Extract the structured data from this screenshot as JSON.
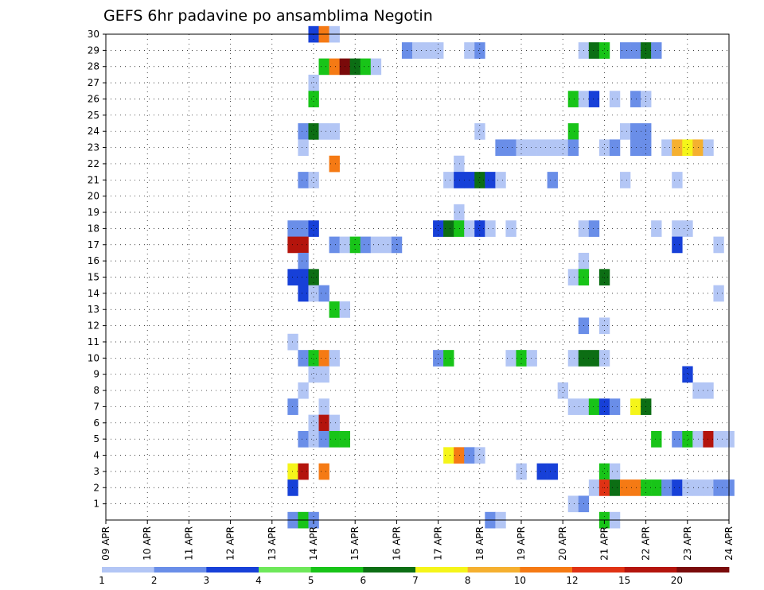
{
  "chart_data": {
    "type": "heatmap",
    "title": "GEFS 6hr padavine po ansamblima Negotin",
    "y_ticks": [
      "1",
      "2",
      "3",
      "4",
      "5",
      "6",
      "7",
      "8",
      "9",
      "10",
      "11",
      "12",
      "13",
      "14",
      "15",
      "16",
      "17",
      "18",
      "19",
      "20",
      "21",
      "22",
      "23",
      "24",
      "25",
      "26",
      "27",
      "28",
      "29",
      "30"
    ],
    "x_ticks": [
      "09 APR",
      "10 APR",
      "11 APR",
      "12 APR",
      "13 APR",
      "14 APR",
      "15 APR",
      "16 APR",
      "17 APR",
      "18 APR",
      "19 APR",
      "20 APR",
      "21 APR",
      "22 APR",
      "23 APR",
      "24 APR"
    ],
    "x_range_days": [
      0,
      15
    ],
    "y_range": [
      0,
      30
    ],
    "grid": "dotted",
    "colorbar": {
      "labels": [
        "1",
        "2",
        "3",
        "4",
        "5",
        "6",
        "7",
        "8",
        "10",
        "12",
        "15",
        "20"
      ],
      "colors": [
        "#b3c6f5",
        "#6a8ee8",
        "#1740d8",
        "#6ee85a",
        "#18c418",
        "#0c6e14",
        "#f5f51a",
        "#f5b030",
        "#f57a14",
        "#e03214",
        "#b4140c",
        "#7a0a0a"
      ]
    },
    "cells": [
      [
        5.0,
        30,
        3
      ],
      [
        5.25,
        30,
        10
      ],
      [
        5.5,
        30,
        1
      ],
      [
        7.25,
        29,
        2
      ],
      [
        7.5,
        29,
        1
      ],
      [
        7.75,
        29,
        1
      ],
      [
        8.0,
        29,
        1
      ],
      [
        8.75,
        29,
        1
      ],
      [
        9.0,
        29,
        2
      ],
      [
        11.5,
        29,
        1
      ],
      [
        11.75,
        29,
        6
      ],
      [
        12.0,
        29,
        5
      ],
      [
        12.5,
        29,
        2
      ],
      [
        12.75,
        29,
        2
      ],
      [
        13.0,
        29,
        6
      ],
      [
        13.25,
        29,
        2
      ],
      [
        5.25,
        28,
        5
      ],
      [
        5.5,
        28,
        10
      ],
      [
        5.75,
        28,
        20
      ],
      [
        6.0,
        28,
        6
      ],
      [
        6.25,
        28,
        5
      ],
      [
        6.5,
        28,
        1
      ],
      [
        5.0,
        27,
        1
      ],
      [
        5.0,
        26,
        5
      ],
      [
        11.25,
        26,
        5
      ],
      [
        11.5,
        26,
        1
      ],
      [
        11.75,
        26,
        3
      ],
      [
        12.25,
        26,
        1
      ],
      [
        12.75,
        26,
        2
      ],
      [
        13.0,
        26,
        1
      ],
      [
        4.75,
        24,
        2
      ],
      [
        5.0,
        24,
        6
      ],
      [
        5.25,
        24,
        1
      ],
      [
        5.5,
        24,
        1
      ],
      [
        9.0,
        24,
        1
      ],
      [
        11.25,
        24,
        5
      ],
      [
        12.5,
        24,
        1
      ],
      [
        12.75,
        24,
        2
      ],
      [
        13.0,
        24,
        2
      ],
      [
        4.75,
        23,
        1
      ],
      [
        9.5,
        23,
        2
      ],
      [
        9.75,
        23,
        2
      ],
      [
        10.0,
        23,
        1
      ],
      [
        10.25,
        23,
        1
      ],
      [
        10.5,
        23,
        1
      ],
      [
        10.75,
        23,
        1
      ],
      [
        11.0,
        23,
        1
      ],
      [
        11.25,
        23,
        2
      ],
      [
        12.0,
        23,
        1
      ],
      [
        12.25,
        23,
        2
      ],
      [
        12.75,
        23,
        2
      ],
      [
        13.0,
        23,
        2
      ],
      [
        13.5,
        23,
        1
      ],
      [
        13.75,
        23,
        8
      ],
      [
        14.0,
        23,
        7
      ],
      [
        14.25,
        23,
        8
      ],
      [
        14.5,
        23,
        1
      ],
      [
        5.5,
        22,
        10
      ],
      [
        8.5,
        22,
        1
      ],
      [
        4.75,
        21,
        2
      ],
      [
        5.0,
        21,
        1
      ],
      [
        8.25,
        21,
        1
      ],
      [
        8.5,
        21,
        3
      ],
      [
        8.75,
        21,
        3
      ],
      [
        9.0,
        21,
        6
      ],
      [
        9.25,
        21,
        3
      ],
      [
        9.5,
        21,
        1
      ],
      [
        10.75,
        21,
        2
      ],
      [
        12.5,
        21,
        1
      ],
      [
        13.75,
        21,
        1
      ],
      [
        8.5,
        19,
        1
      ],
      [
        4.5,
        18,
        2
      ],
      [
        4.75,
        18,
        2
      ],
      [
        5.0,
        18,
        3
      ],
      [
        8.0,
        18,
        3
      ],
      [
        8.25,
        18,
        6
      ],
      [
        8.5,
        18,
        5
      ],
      [
        8.75,
        18,
        1
      ],
      [
        9.0,
        18,
        3
      ],
      [
        9.25,
        18,
        1
      ],
      [
        9.75,
        18,
        1
      ],
      [
        11.5,
        18,
        1
      ],
      [
        11.75,
        18,
        2
      ],
      [
        13.25,
        18,
        1
      ],
      [
        13.75,
        18,
        1
      ],
      [
        14.0,
        18,
        1
      ],
      [
        4.5,
        17,
        15
      ],
      [
        4.75,
        17,
        15
      ],
      [
        5.5,
        17,
        2
      ],
      [
        5.75,
        17,
        1
      ],
      [
        6.0,
        17,
        5
      ],
      [
        6.25,
        17,
        2
      ],
      [
        6.5,
        17,
        1
      ],
      [
        6.75,
        17,
        1
      ],
      [
        7.0,
        17,
        2
      ],
      [
        13.75,
        17,
        3
      ],
      [
        14.75,
        17,
        1
      ],
      [
        4.75,
        16,
        2
      ],
      [
        11.5,
        16,
        1
      ],
      [
        4.5,
        15,
        3
      ],
      [
        4.75,
        15,
        3
      ],
      [
        5.0,
        15,
        6
      ],
      [
        11.25,
        15,
        1
      ],
      [
        11.5,
        15,
        5
      ],
      [
        12.0,
        15,
        6
      ],
      [
        4.75,
        14,
        3
      ],
      [
        5.0,
        14,
        1
      ],
      [
        5.25,
        14,
        2
      ],
      [
        14.75,
        14,
        1
      ],
      [
        5.5,
        13,
        5
      ],
      [
        5.75,
        13,
        1
      ],
      [
        11.5,
        12,
        2
      ],
      [
        12.0,
        12,
        1
      ],
      [
        4.5,
        11,
        1
      ],
      [
        4.75,
        10,
        2
      ],
      [
        5.0,
        10,
        5
      ],
      [
        5.25,
        10,
        10
      ],
      [
        5.5,
        10,
        1
      ],
      [
        8.0,
        10,
        2
      ],
      [
        8.25,
        10,
        5
      ],
      [
        9.75,
        10,
        1
      ],
      [
        10.0,
        10,
        5
      ],
      [
        10.25,
        10,
        1
      ],
      [
        11.25,
        10,
        1
      ],
      [
        11.5,
        10,
        6
      ],
      [
        11.75,
        10,
        6
      ],
      [
        12.0,
        10,
        1
      ],
      [
        5.0,
        9,
        1
      ],
      [
        5.25,
        9,
        1
      ],
      [
        14.0,
        9,
        3
      ],
      [
        4.75,
        8,
        1
      ],
      [
        11.0,
        8,
        1
      ],
      [
        14.25,
        8,
        1
      ],
      [
        14.5,
        8,
        1
      ],
      [
        4.5,
        7,
        2
      ],
      [
        5.25,
        7,
        1
      ],
      [
        11.25,
        7,
        1
      ],
      [
        11.5,
        7,
        1
      ],
      [
        11.75,
        7,
        5
      ],
      [
        12.0,
        7,
        3
      ],
      [
        12.25,
        7,
        2
      ],
      [
        12.75,
        7,
        7
      ],
      [
        13.0,
        7,
        6
      ],
      [
        5.0,
        6,
        1
      ],
      [
        5.25,
        6,
        15
      ],
      [
        5.5,
        6,
        1
      ],
      [
        4.75,
        5,
        2
      ],
      [
        5.0,
        5,
        1
      ],
      [
        5.25,
        5,
        2
      ],
      [
        5.5,
        5,
        5
      ],
      [
        5.75,
        5,
        5
      ],
      [
        13.25,
        5,
        5
      ],
      [
        13.75,
        5,
        2
      ],
      [
        14.0,
        5,
        5
      ],
      [
        14.25,
        5,
        1
      ],
      [
        14.5,
        5,
        15
      ],
      [
        14.75,
        5,
        1
      ],
      [
        15.0,
        5,
        1
      ],
      [
        8.25,
        4,
        7
      ],
      [
        8.5,
        4,
        10
      ],
      [
        8.75,
        4,
        2
      ],
      [
        9.0,
        4,
        1
      ],
      [
        4.5,
        3,
        7
      ],
      [
        4.75,
        3,
        15
      ],
      [
        5.25,
        3,
        10
      ],
      [
        10.0,
        3,
        1
      ],
      [
        10.5,
        3,
        3
      ],
      [
        10.75,
        3,
        3
      ],
      [
        12.0,
        3,
        5
      ],
      [
        12.25,
        3,
        1
      ],
      [
        4.5,
        2,
        3
      ],
      [
        11.75,
        2,
        1
      ],
      [
        12.0,
        2,
        12
      ],
      [
        12.25,
        2,
        6
      ],
      [
        12.5,
        2,
        10
      ],
      [
        12.75,
        2,
        10
      ],
      [
        13.0,
        2,
        5
      ],
      [
        13.25,
        2,
        5
      ],
      [
        13.5,
        2,
        2
      ],
      [
        13.75,
        2,
        3
      ],
      [
        14.0,
        2,
        1
      ],
      [
        14.25,
        2,
        1
      ],
      [
        14.5,
        2,
        1
      ],
      [
        14.75,
        2,
        2
      ],
      [
        15.0,
        2,
        2
      ],
      [
        11.25,
        1,
        1
      ],
      [
        11.5,
        1,
        2
      ],
      [
        4.5,
        0,
        2
      ],
      [
        4.75,
        0,
        5
      ],
      [
        5.0,
        0,
        2
      ],
      [
        9.25,
        0,
        2
      ],
      [
        9.5,
        0,
        1
      ],
      [
        12.0,
        0,
        5
      ],
      [
        12.25,
        0,
        1
      ]
    ]
  }
}
